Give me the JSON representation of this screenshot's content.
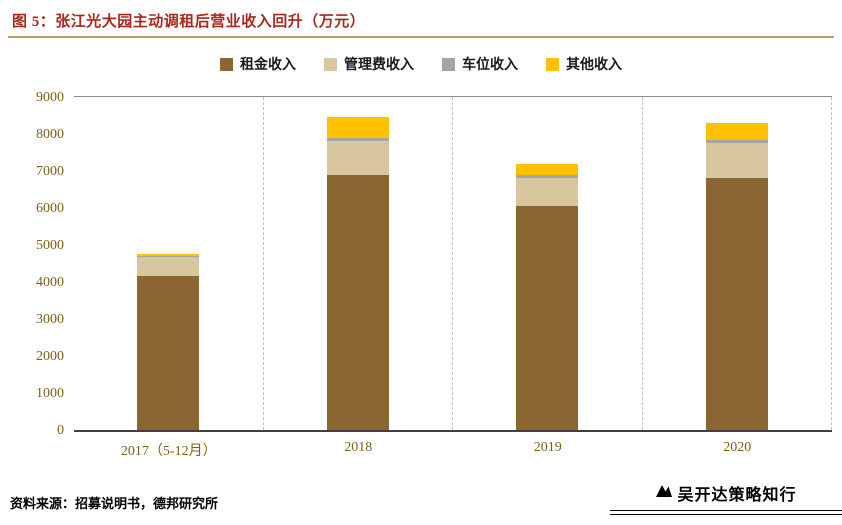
{
  "header": {
    "title": "图 5：张江光大园主动调租后营业收入回升（万元）"
  },
  "footer": {
    "source": "资料来源：招募说明书，德邦研究所",
    "watermark": "吴开达策略知行"
  },
  "colors": {
    "title_red": "#A8291A",
    "header_rule": "#C29B57",
    "axis_text": "#7E6011"
  },
  "chart_data": {
    "type": "bar",
    "stacked": true,
    "title": "张江光大园主动调租后营业收入回升（万元）",
    "xlabel": "",
    "ylabel": "",
    "ylim": [
      0,
      9000
    ],
    "ytick_interval": 1000,
    "grid": "vertical-dashed",
    "legend_position": "top",
    "categories": [
      "2017（5-12月）",
      "2018",
      "2019",
      "2020"
    ],
    "series": [
      {
        "name": "租金收入",
        "color": "#8B6532",
        "values": [
          4150,
          6900,
          6050,
          6800
        ]
      },
      {
        "name": "管理费收入",
        "color": "#D8C79E",
        "values": [
          520,
          900,
          750,
          950
        ]
      },
      {
        "name": "车位收入",
        "color": "#A5A5A5",
        "values": [
          40,
          100,
          100,
          100
        ]
      },
      {
        "name": "其他收入",
        "color": "#FFC000",
        "values": [
          50,
          550,
          300,
          450
        ]
      }
    ],
    "totals": [
      4760,
      8450,
      7200,
      8300
    ]
  }
}
